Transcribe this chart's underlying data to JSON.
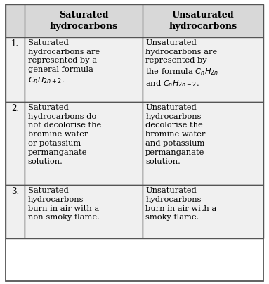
{
  "title_col1": "Saturated\nhydrocarbons",
  "title_col2": "Unsaturated\nhydrocarbons",
  "header_bg": "#d8d8d8",
  "cell_bg": "#f0f0f0",
  "border_color": "#555555",
  "rows": [
    {
      "num": "1.",
      "sat": "Saturated\nhydrocarbons are\nrepresented by a\ngeneral formula\n$C_nH_{2n+2}$.",
      "unsat": "Unsaturated\nhydrocarbons are\nrepresented by\nthe formula $C_nH_{2n}$\nand $C_nH_{2n-2}$."
    },
    {
      "num": "2.",
      "sat": "Saturated\nhydrocarbons do\nnot decolorise the\nbromine water\nor potassium\npermanganate\nsolution.",
      "unsat": "Unsaturated\nhydrocarbons\ndecolorise the\nbromine water\nand potassium\npermanganate\nsolution."
    },
    {
      "num": "3.",
      "sat": "Saturated\nhydrocarbons\nburn in air with a\nnon-smoky flame.",
      "unsat": "Unsaturated\nhydrocarbons\nburn in air with a\nsmoky flame."
    }
  ],
  "font_size": 8.2,
  "header_font_size": 9.2,
  "num_font_size": 8.5
}
